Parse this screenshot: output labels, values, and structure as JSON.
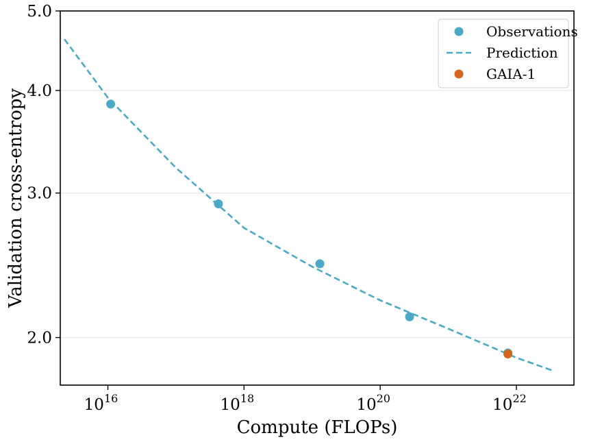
{
  "chart_data": {
    "type": "scatter",
    "xlabel": "Compute (FLOPs)",
    "ylabel": "Validation cross-entropy",
    "xscale": "log",
    "yscale": "log",
    "xlim": [
      2000000000000000.0,
      7e+22
    ],
    "ylim": [
      1.75,
      5.0
    ],
    "grid": "horizontal",
    "legend_position": "top-right",
    "x_ticks": [
      {
        "value": 1e+16,
        "base": "10",
        "exp": "16"
      },
      {
        "value": 1e+18,
        "base": "10",
        "exp": "18"
      },
      {
        "value": 1e+20,
        "base": "10",
        "exp": "20"
      },
      {
        "value": 1e+22,
        "base": "10",
        "exp": "22"
      }
    ],
    "y_ticks": [
      {
        "value": 2.0,
        "label": "2.0"
      },
      {
        "value": 3.0,
        "label": "3.0"
      },
      {
        "value": 4.0,
        "label": "4.0"
      },
      {
        "value": 5.0,
        "label": "5.0"
      }
    ],
    "series": [
      {
        "name": "Observations",
        "kind": "scatter",
        "color": "#4aa9c6",
        "points": [
          {
            "x": 1.1e+16,
            "y": 3.85
          },
          {
            "x": 4.2e+17,
            "y": 2.91
          },
          {
            "x": 1.3e+19,
            "y": 2.46
          },
          {
            "x": 2.7e+20,
            "y": 2.12
          },
          {
            "x": 7.5e+21,
            "y": 1.915
          }
        ]
      },
      {
        "name": "Prediction",
        "kind": "dashed-line",
        "color": "#4aa9c6",
        "points": [
          {
            "x": 2300000000000000.0,
            "y": 4.62
          },
          {
            "x": 1e+16,
            "y": 3.92
          },
          {
            "x": 1e+17,
            "y": 3.22
          },
          {
            "x": 1e+18,
            "y": 2.72
          },
          {
            "x": 1e+19,
            "y": 2.44
          },
          {
            "x": 1e+20,
            "y": 2.22
          },
          {
            "x": 1e+21,
            "y": 2.05
          },
          {
            "x": 1e+22,
            "y": 1.89
          },
          {
            "x": 3.6e+22,
            "y": 1.82
          }
        ]
      },
      {
        "name": "GAIA-1",
        "kind": "scatter",
        "color": "#d4661f",
        "points": [
          {
            "x": 7.5e+21,
            "y": 1.91
          }
        ]
      }
    ]
  }
}
